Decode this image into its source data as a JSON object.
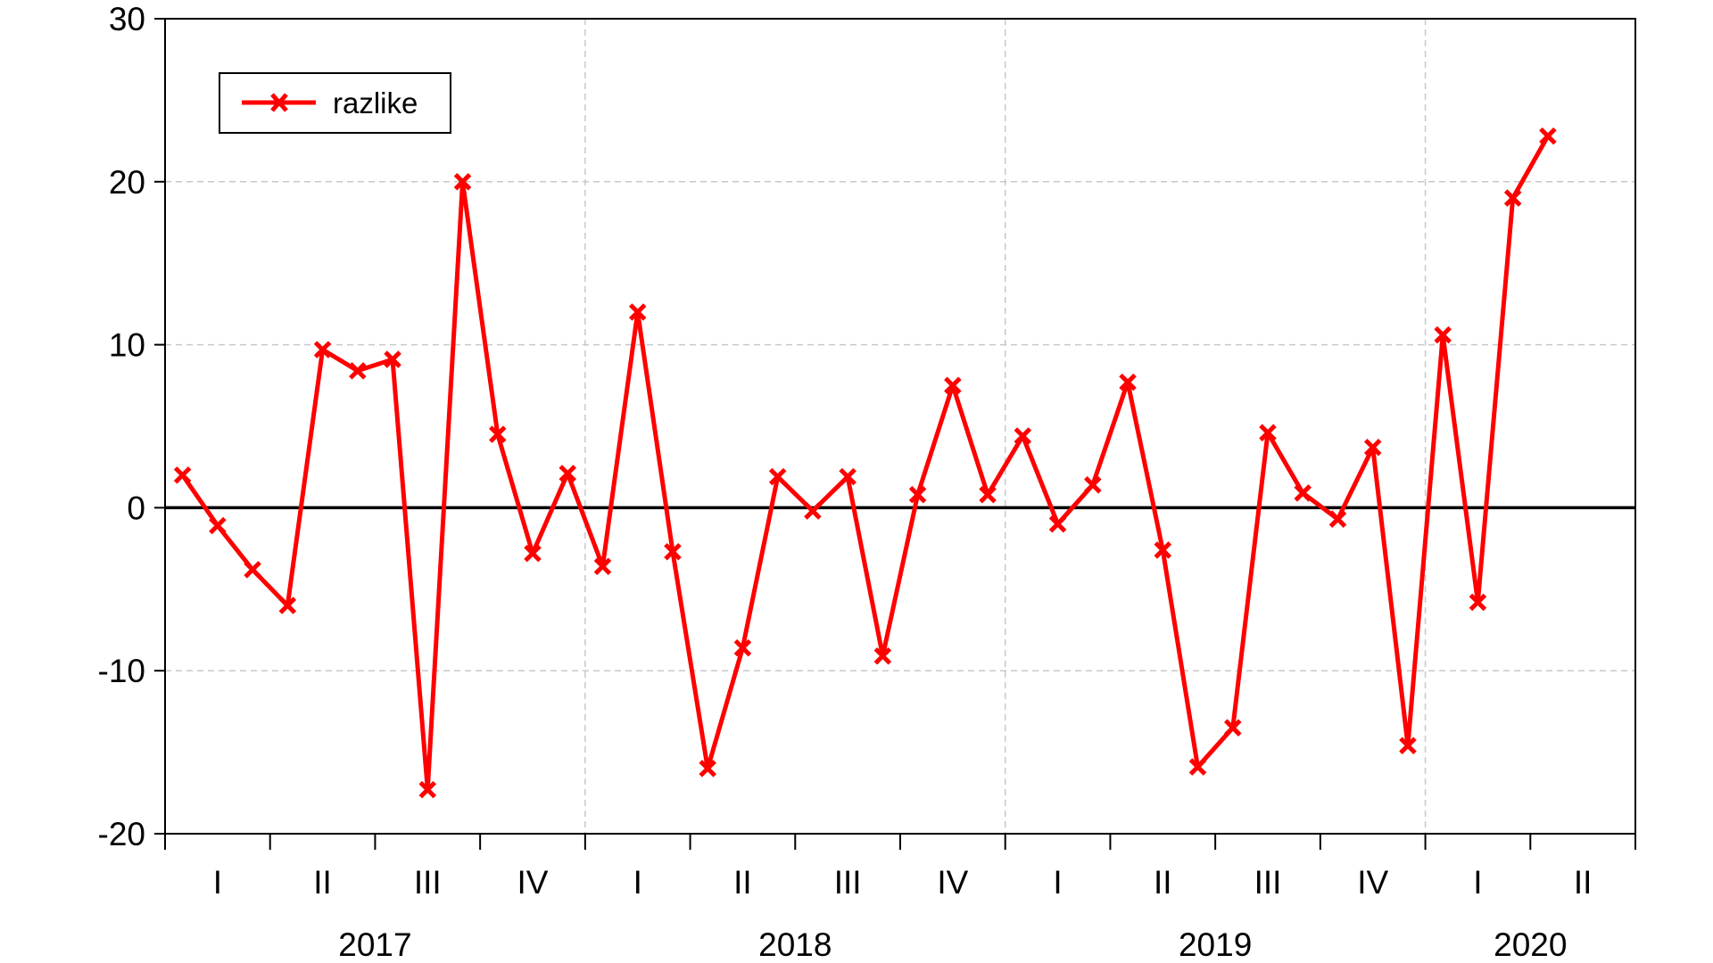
{
  "chart_data": {
    "type": "line",
    "legend": {
      "position": "top-left",
      "entries": [
        "razlike"
      ]
    },
    "grid": true,
    "ylim": [
      -20,
      30
    ],
    "yticks": [
      -20,
      -10,
      0,
      10,
      20,
      30
    ],
    "quarter_labels": [
      "I",
      "II",
      "III",
      "IV",
      "I",
      "II",
      "III",
      "IV",
      "I",
      "II",
      "III",
      "IV",
      "I",
      "II"
    ],
    "year_labels": [
      "2017",
      "2018",
      "2019",
      "2020"
    ],
    "start": "2017-01",
    "frequency": "monthly",
    "series": [
      {
        "name": "razlike",
        "color": "#ff0000",
        "marker": "x",
        "values": [
          2.0,
          -1.1,
          -3.8,
          -6.0,
          9.7,
          8.4,
          9.1,
          -17.3,
          20.0,
          4.5,
          -2.8,
          2.1,
          -3.6,
          12.0,
          -2.7,
          -16.0,
          -8.6,
          1.9,
          -0.2,
          1.9,
          -9.1,
          0.8,
          7.5,
          0.8,
          4.4,
          -1.0,
          1.4,
          7.7,
          -2.6,
          -15.9,
          -13.5,
          4.6,
          0.9,
          -0.7,
          3.7,
          -14.6,
          10.6,
          -5.8,
          19.0,
          22.8
        ]
      }
    ]
  }
}
